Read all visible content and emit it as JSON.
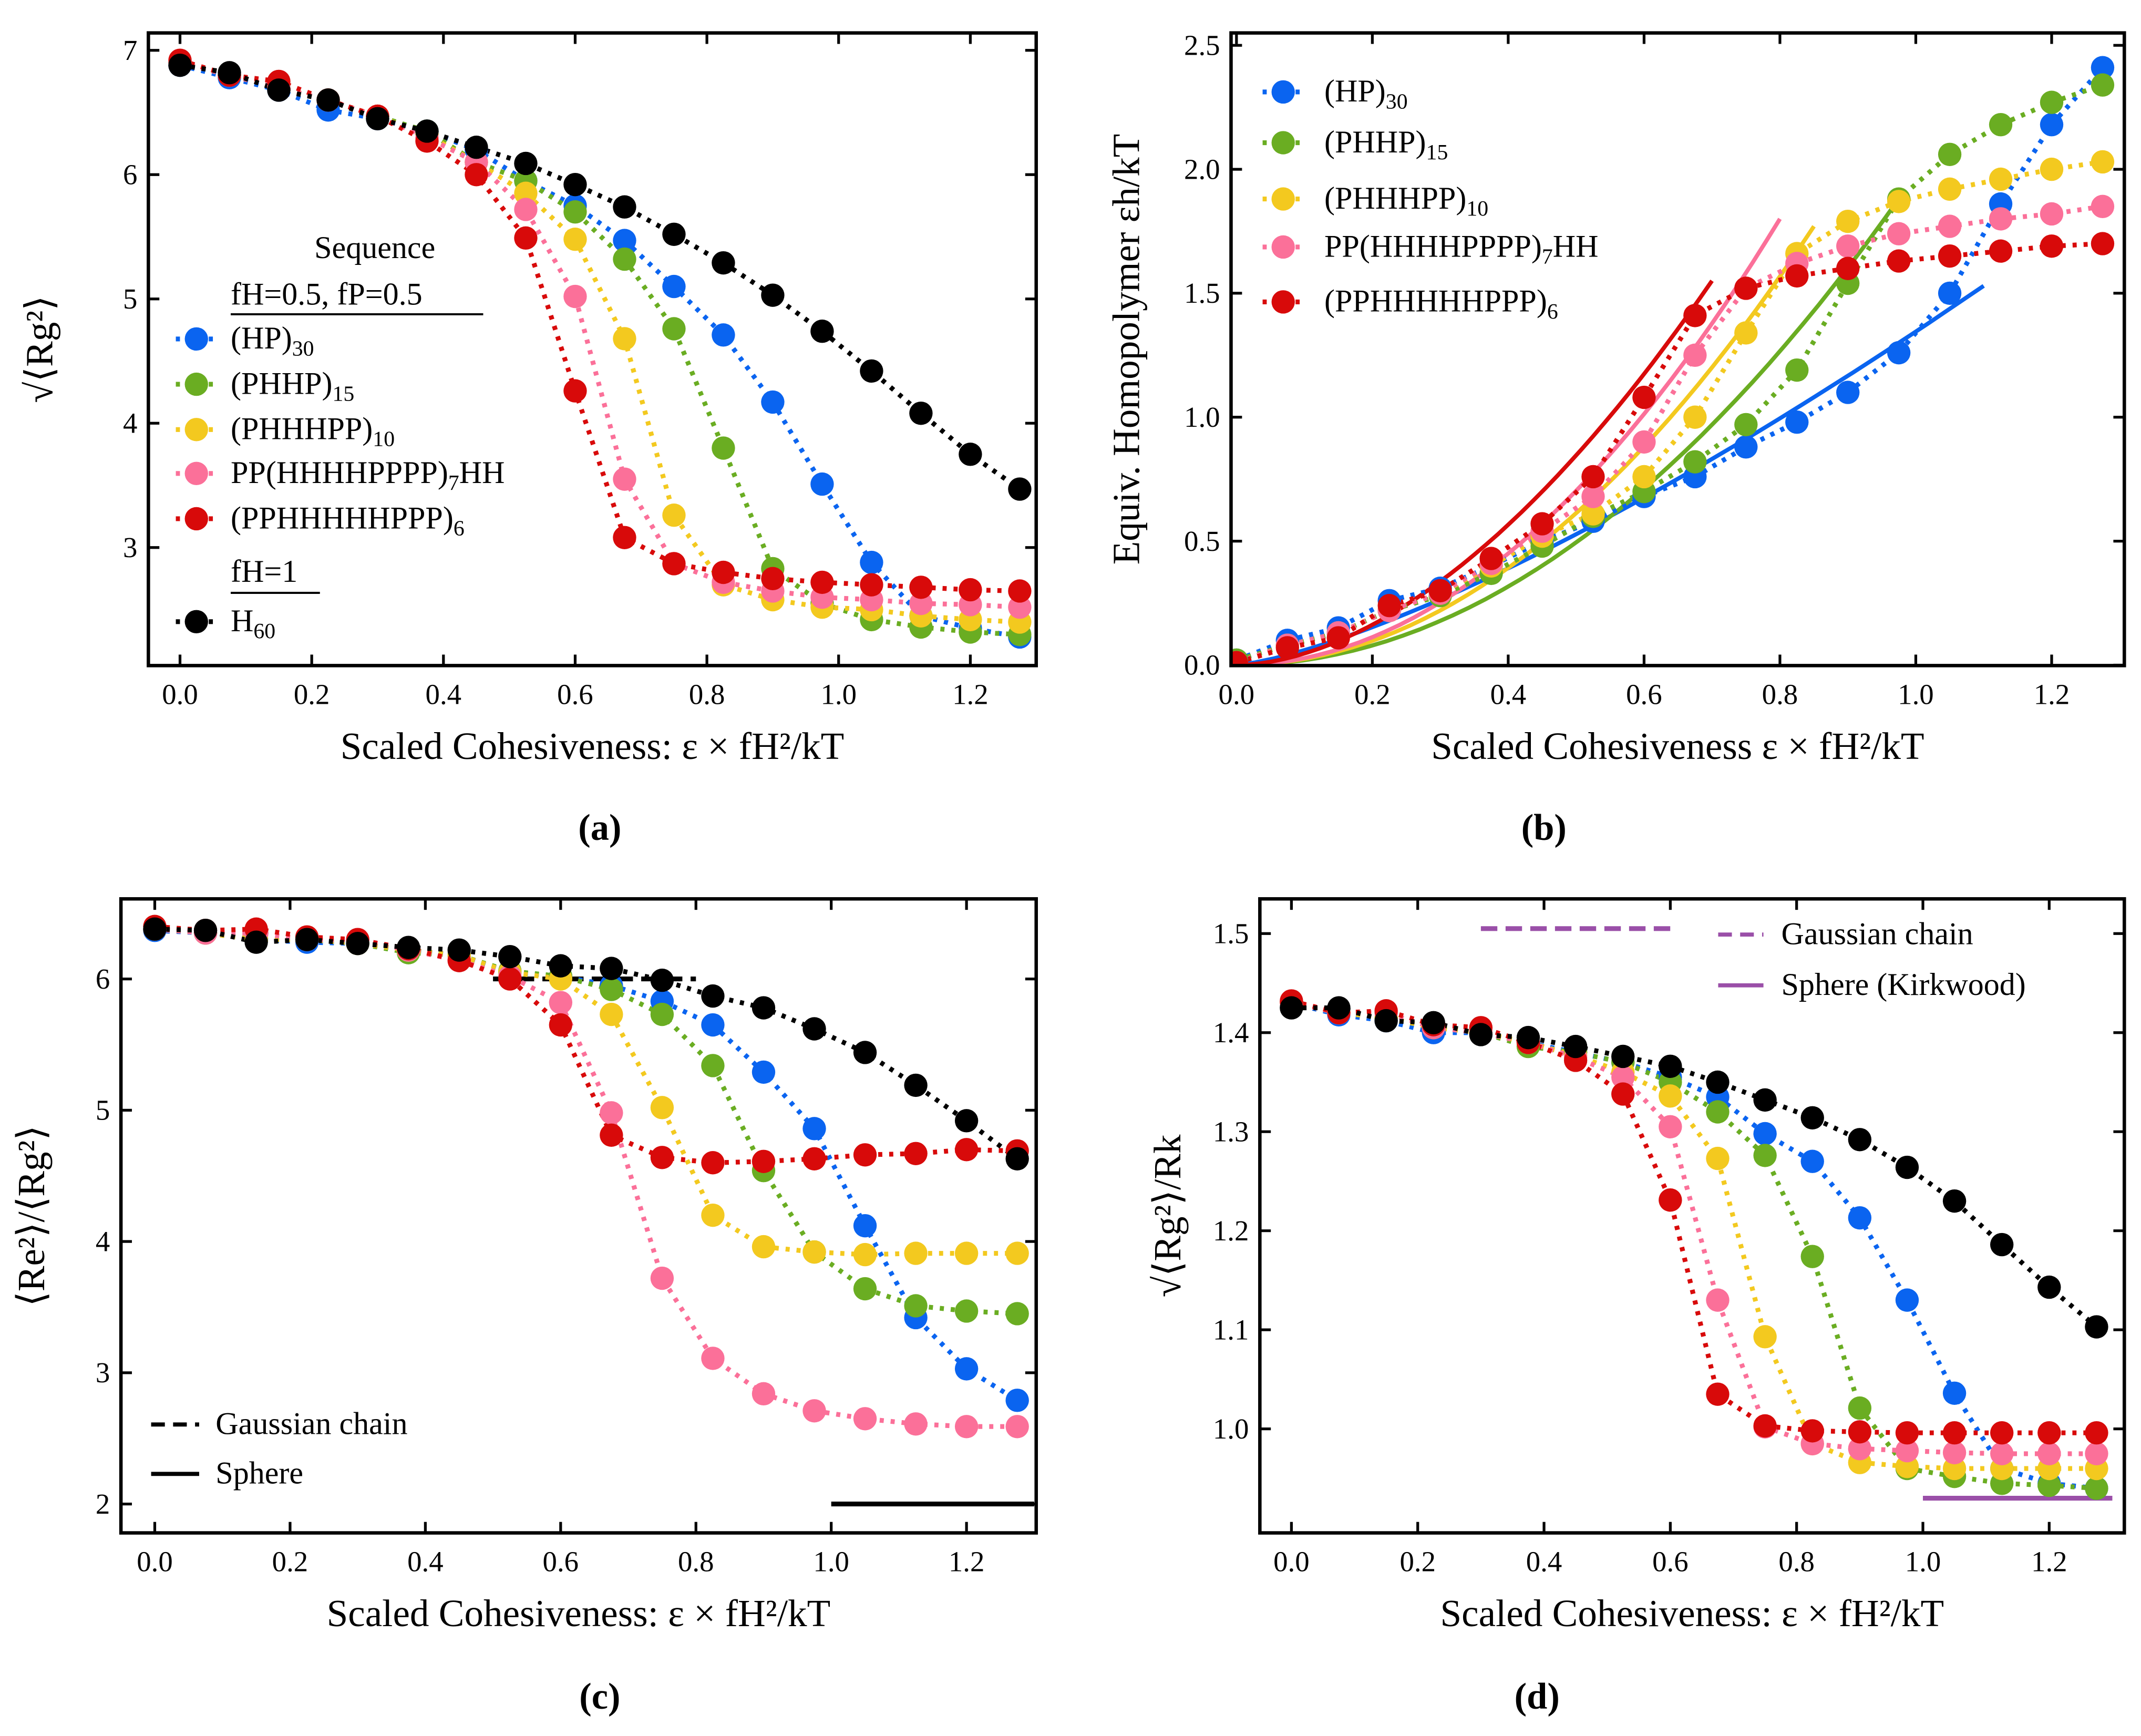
{
  "x_values": [
    0,
    0.075,
    0.15,
    0.225,
    0.3,
    0.375,
    0.45,
    0.525,
    0.6,
    0.675,
    0.75,
    0.825,
    0.9,
    0.975,
    1.05,
    1.125,
    1.2,
    1.275
  ],
  "series_styles": [
    {
      "key": "hp30",
      "label_parts": [
        "(HP)",
        "30"
      ],
      "color": "#0a64f0"
    },
    {
      "key": "phhp15",
      "label_parts": [
        "(PHHP)",
        "15"
      ],
      "color": "#6aad22"
    },
    {
      "key": "phhhpp10",
      "label_parts": [
        "(PHHHPP)",
        "10"
      ],
      "color": "#f3c91f"
    },
    {
      "key": "pp7hh",
      "label_parts": [
        "PP(HHHHPPPP)",
        "7",
        "HH"
      ],
      "color": "#fb7099"
    },
    {
      "key": "pphhhhhppp6",
      "label_parts": [
        "(PPHHHHHPPP)",
        "6"
      ],
      "color": "#d80a0a"
    },
    {
      "key": "h60",
      "label_parts": [
        "H",
        "60"
      ],
      "color": "#000000"
    }
  ],
  "chart_data": [
    {
      "id": "a",
      "type": "line",
      "caption": "(a)",
      "xlabel": "Scaled Cohesiveness: ε × fH²/kT",
      "ylabel": "√⟨Rg²⟩",
      "xlim": [
        -0.048,
        1.3
      ],
      "ylim": [
        2.05,
        7.14
      ],
      "xticks": [
        "0.0",
        "0.2",
        "0.4",
        "0.6",
        "0.8",
        "1.0",
        "1.2"
      ],
      "yticks": [
        "3",
        "4",
        "5",
        "6",
        "7"
      ],
      "legend": {
        "title": "Sequence",
        "group1": "fH=0.5, fP=0.5",
        "group2": "fH=1",
        "placement": "center-left"
      },
      "series": {
        "hp30": [
          6.88,
          6.78,
          6.68,
          6.52,
          6.45,
          6.35,
          6.2,
          5.95,
          5.75,
          5.47,
          5.1,
          4.71,
          4.17,
          3.51,
          2.88,
          2.45,
          2.35,
          2.28
        ],
        "phhp15": [
          6.9,
          6.8,
          6.7,
          6.6,
          6.47,
          6.35,
          6.1,
          5.95,
          5.7,
          5.32,
          4.76,
          3.8,
          2.83,
          2.55,
          2.42,
          2.36,
          2.32,
          2.3
        ],
        "phhhpp10": [
          6.9,
          6.8,
          6.7,
          6.6,
          6.47,
          6.32,
          6.1,
          5.85,
          5.48,
          4.68,
          3.26,
          2.7,
          2.58,
          2.52,
          2.5,
          2.45,
          2.42,
          2.4
        ],
        "pp7hh": [
          6.9,
          6.8,
          6.7,
          6.6,
          6.47,
          6.3,
          6.1,
          5.72,
          5.02,
          3.55,
          2.87,
          2.72,
          2.65,
          2.6,
          2.58,
          2.55,
          2.54,
          2.52
        ],
        "pphhhhhppp6": [
          6.92,
          6.8,
          6.75,
          6.6,
          6.47,
          6.27,
          6.0,
          5.49,
          4.26,
          3.08,
          2.87,
          2.8,
          2.75,
          2.72,
          2.7,
          2.68,
          2.66,
          2.65
        ],
        "h60": [
          6.88,
          6.82,
          6.68,
          6.6,
          6.45,
          6.35,
          6.22,
          6.09,
          5.92,
          5.74,
          5.52,
          5.29,
          5.03,
          4.74,
          4.42,
          4.08,
          3.75,
          3.47
        ]
      }
    },
    {
      "id": "b",
      "type": "line",
      "caption": "(b)",
      "xlabel": "Scaled Cohesiveness ε × fH²/kT",
      "ylabel": "Equiv. Homopolymer εh/kT",
      "xlim": [
        -0.008,
        1.307
      ],
      "ylim": [
        -0.002,
        2.55
      ],
      "xticks": [
        "0.0",
        "0.2",
        "0.4",
        "0.6",
        "0.8",
        "1.0",
        "1.2"
      ],
      "yticks": [
        "0.0",
        "0.5",
        "1.0",
        "1.5",
        "2.0",
        "2.5"
      ],
      "legend": {
        "placement": "top-left"
      },
      "series": {
        "hp30": [
          0.02,
          0.1,
          0.15,
          0.26,
          0.31,
          0.4,
          0.5,
          0.58,
          0.68,
          0.76,
          0.88,
          0.98,
          1.1,
          1.26,
          1.5,
          1.86,
          2.18,
          2.41
        ],
        "phhp15": [
          0.02,
          0.08,
          0.13,
          0.22,
          0.28,
          0.37,
          0.48,
          0.6,
          0.7,
          0.82,
          0.97,
          1.19,
          1.54,
          1.88,
          2.06,
          2.18,
          2.27,
          2.34
        ],
        "phhhpp10": [
          0.01,
          0.08,
          0.13,
          0.22,
          0.29,
          0.4,
          0.52,
          0.61,
          0.76,
          1.0,
          1.34,
          1.66,
          1.79,
          1.87,
          1.92,
          1.96,
          2.0,
          2.03
        ],
        "pp7hh": [
          0.01,
          0.08,
          0.13,
          0.22,
          0.29,
          0.41,
          0.54,
          0.68,
          0.9,
          1.25,
          1.52,
          1.62,
          1.69,
          1.74,
          1.77,
          1.8,
          1.82,
          1.85
        ],
        "pphhhhhppp6": [
          0.01,
          0.07,
          0.11,
          0.24,
          0.3,
          0.43,
          0.57,
          0.76,
          1.08,
          1.41,
          1.52,
          1.57,
          1.6,
          1.63,
          1.65,
          1.67,
          1.69,
          1.7
        ]
      },
      "fits": [
        {
          "series": "hp30",
          "x_max": 1.1,
          "y_at_x_max": 1.53,
          "exponent": 1.35
        },
        {
          "series": "phhp15",
          "x_max": 0.98,
          "y_at_x_max": 1.9,
          "exponent": 2.0
        },
        {
          "series": "phhhpp10",
          "x_max": 0.85,
          "y_at_x_max": 1.77,
          "exponent": 2.0
        },
        {
          "series": "pp7hh",
          "x_max": 0.8,
          "y_at_x_max": 1.8,
          "exponent": 2.0
        },
        {
          "series": "pphhhhhppp6",
          "x_max": 0.7,
          "y_at_x_max": 1.55,
          "exponent": 1.8
        }
      ]
    },
    {
      "id": "c",
      "type": "line",
      "caption": "(c)",
      "xlabel": "Scaled Cohesiveness: ε × fH²/kT",
      "ylabel": "⟨Re²⟩/⟨Rg²⟩",
      "xlim": [
        -0.05,
        1.303
      ],
      "ylim": [
        1.78,
        6.61
      ],
      "xticks": [
        "0.0",
        "0.2",
        "0.4",
        "0.6",
        "0.8",
        "1.0",
        "1.2"
      ],
      "yticks": [
        "2",
        "3",
        "4",
        "5",
        "6"
      ],
      "legend": {
        "placement": "bottom-left"
      },
      "reference_lines": [
        {
          "label": "Gaussian chain",
          "y": 6.0,
          "x": [
            0.5,
            0.8
          ],
          "style": "dashed",
          "color": "#000000"
        },
        {
          "label": "Sphere",
          "y": 2.0,
          "x": [
            1.0,
            1.3
          ],
          "style": "solid",
          "color": "#000000"
        }
      ],
      "series": {
        "hp30": [
          6.37,
          6.35,
          6.3,
          6.28,
          6.27,
          6.22,
          6.18,
          6.05,
          6.02,
          5.95,
          5.83,
          5.65,
          5.29,
          4.86,
          4.12,
          3.42,
          3.03,
          2.79
        ],
        "phhp15": [
          6.38,
          6.35,
          6.3,
          6.3,
          6.27,
          6.2,
          6.18,
          6.06,
          6.02,
          5.92,
          5.73,
          5.34,
          4.54,
          3.92,
          3.64,
          3.51,
          3.47,
          3.45
        ],
        "phhhpp10": [
          6.38,
          6.35,
          6.3,
          6.3,
          6.27,
          6.22,
          6.18,
          6.05,
          6.0,
          5.73,
          5.02,
          4.2,
          3.96,
          3.92,
          3.9,
          3.91,
          3.91,
          3.91
        ],
        "pp7hh": [
          6.38,
          6.35,
          6.35,
          6.3,
          6.3,
          6.22,
          6.14,
          6.02,
          5.82,
          4.98,
          3.72,
          3.11,
          2.84,
          2.71,
          2.65,
          2.61,
          2.59,
          2.59
        ],
        "pphhhhhppp6": [
          6.4,
          6.37,
          6.38,
          6.32,
          6.3,
          6.23,
          6.14,
          6.0,
          5.65,
          4.81,
          4.64,
          4.6,
          4.61,
          4.63,
          4.66,
          4.67,
          4.7,
          4.69
        ],
        "h60": [
          6.38,
          6.37,
          6.28,
          6.3,
          6.27,
          6.24,
          6.22,
          6.17,
          6.1,
          6.08,
          5.99,
          5.87,
          5.78,
          5.62,
          5.44,
          5.19,
          4.92,
          4.63
        ]
      }
    },
    {
      "id": "d",
      "type": "line",
      "caption": "(d)",
      "xlabel": "Scaled Cohesiveness: ε × fH²/kT",
      "ylabel": "√⟨Rg²⟩/Rk",
      "xlim": [
        -0.05,
        1.319
      ],
      "ylim": [
        0.895,
        1.535
      ],
      "xticks": [
        "0.0",
        "0.2",
        "0.4",
        "0.6",
        "0.8",
        "1.0",
        "1.2"
      ],
      "yticks": [
        "1.0",
        "1.1",
        "1.2",
        "1.3",
        "1.4",
        "1.5"
      ],
      "legend": {
        "placement": "top-right"
      },
      "reference_lines": [
        {
          "label": "Gaussian chain",
          "y": 1.505,
          "x": [
            0.3,
            0.6
          ],
          "style": "dashed",
          "color": "#9a4fa8"
        },
        {
          "label": "Sphere (Kirkwood)",
          "y": 0.93,
          "x": [
            1.0,
            1.3
          ],
          "style": "solid",
          "color": "#9a4fa8"
        }
      ],
      "series": {
        "hp30": [
          1.43,
          1.418,
          1.412,
          1.4,
          1.4,
          1.39,
          1.38,
          1.37,
          1.355,
          1.335,
          1.298,
          1.27,
          1.213,
          1.13,
          1.036,
          0.96,
          0.945,
          0.94
        ],
        "phhp15": [
          1.43,
          1.42,
          1.415,
          1.405,
          1.4,
          1.386,
          1.38,
          1.37,
          1.35,
          1.32,
          1.276,
          1.174,
          1.021,
          0.96,
          0.952,
          0.945,
          0.943,
          0.94
        ],
        "phhhpp10": [
          1.43,
          1.42,
          1.415,
          1.405,
          1.4,
          1.39,
          1.377,
          1.36,
          1.336,
          1.273,
          1.093,
          0.985,
          0.966,
          0.962,
          0.96,
          0.96,
          0.96,
          0.96
        ],
        "pp7hh": [
          1.43,
          1.42,
          1.42,
          1.405,
          1.4,
          1.39,
          1.375,
          1.355,
          1.305,
          1.13,
          1.002,
          0.985,
          0.98,
          0.978,
          0.976,
          0.975,
          0.975,
          0.975
        ],
        "pphhhhhppp6": [
          1.432,
          1.42,
          1.422,
          1.408,
          1.405,
          1.39,
          1.372,
          1.338,
          1.231,
          1.035,
          1.003,
          0.998,
          0.997,
          0.996,
          0.996,
          0.996,
          0.996,
          0.996
        ],
        "h60": [
          1.425,
          1.425,
          1.412,
          1.41,
          1.398,
          1.395,
          1.386,
          1.376,
          1.366,
          1.35,
          1.332,
          1.314,
          1.292,
          1.264,
          1.23,
          1.186,
          1.143,
          1.103
        ]
      }
    }
  ]
}
